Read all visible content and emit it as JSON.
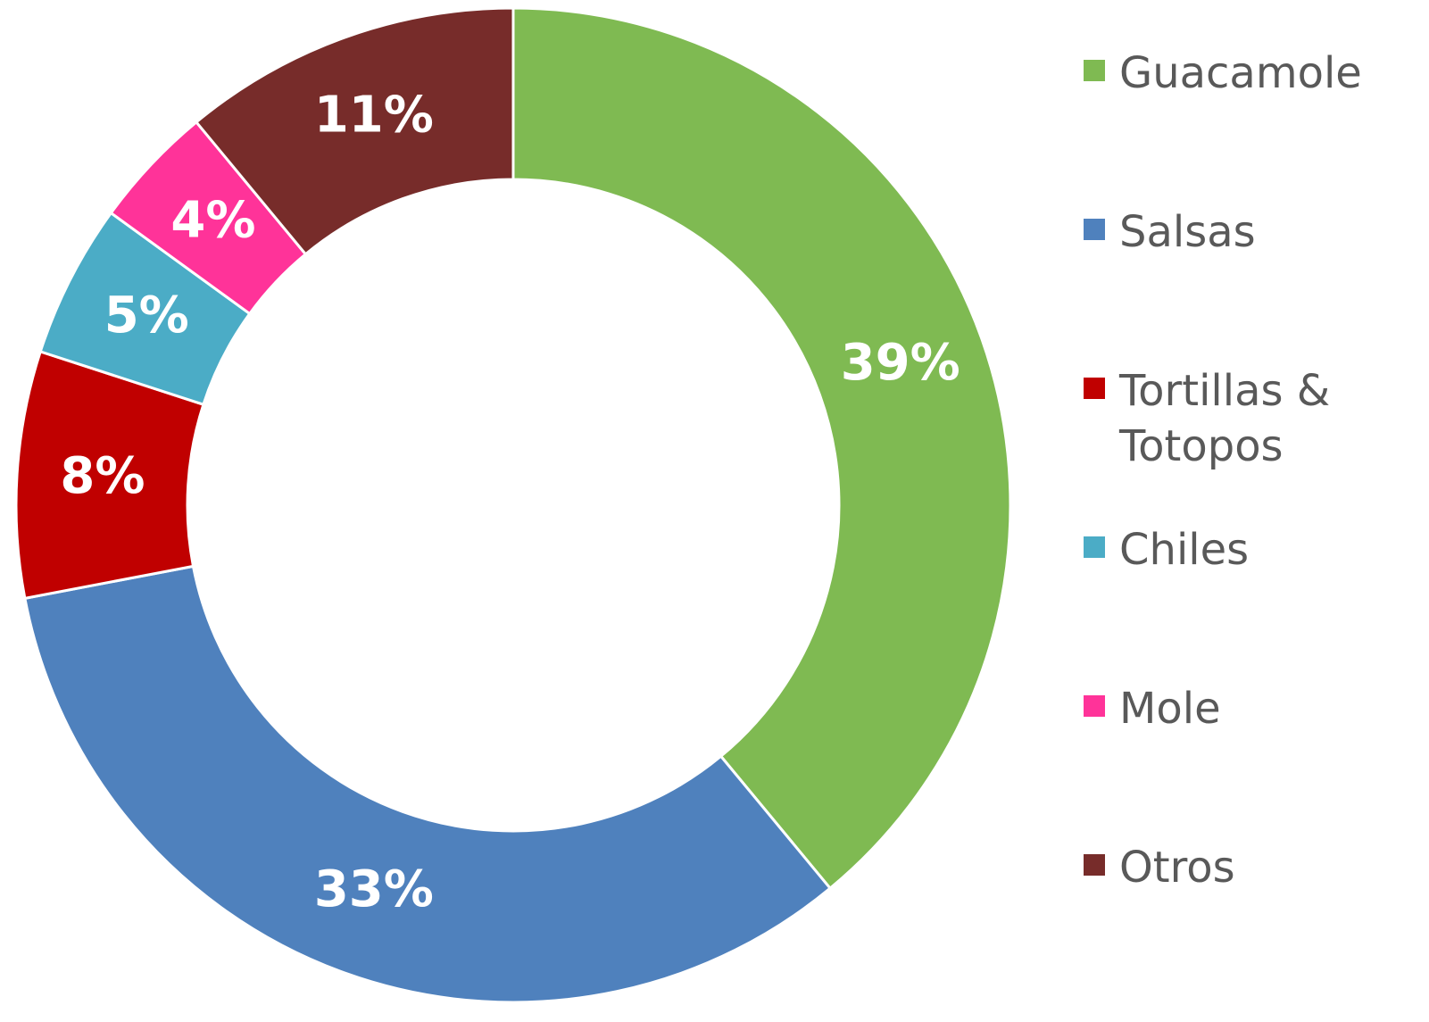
{
  "chart_data": {
    "type": "donut",
    "categories": [
      "Guacamole",
      "Salsas",
      "Tortillas & Totopos",
      "Chiles",
      "Mole",
      "Otros"
    ],
    "values": [
      39,
      33,
      8,
      5,
      4,
      11
    ],
    "value_labels": [
      "39%",
      "33%",
      "8%",
      "5%",
      "4%",
      "11%"
    ],
    "colors": [
      "#7fba52",
      "#4f81bd",
      "#c00000",
      "#4bacc6",
      "#ff3399",
      "#772c2a"
    ],
    "legend": "right"
  }
}
